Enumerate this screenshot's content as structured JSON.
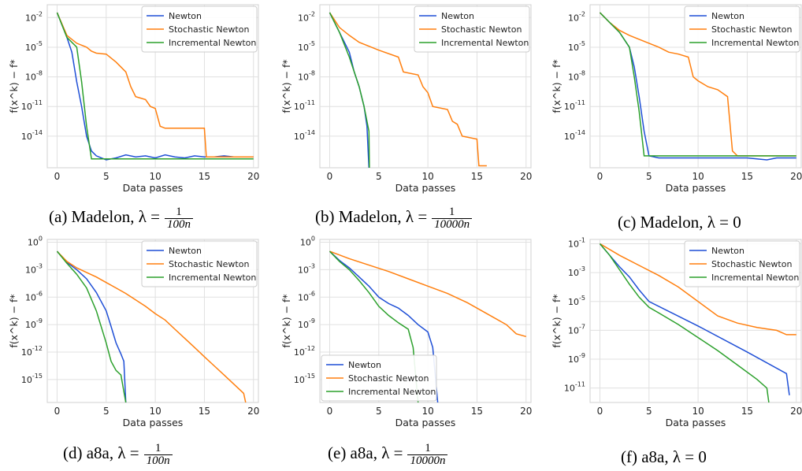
{
  "figure": {
    "series_names": [
      "Newton",
      "Stochastic Newton",
      "Incremental Newton"
    ],
    "colors": {
      "Newton": "#1f4fd6",
      "Stochastic Newton": "#ff7f0e",
      "Incremental Newton": "#2ca02c"
    },
    "xlabel": "Data passes",
    "ylabel_text": "f(x^k) − f*"
  },
  "captions": [
    {
      "prefix": "(a) Madelon, λ = ",
      "num": "1",
      "den": "100n",
      "zero": ""
    },
    {
      "prefix": "(b) Madelon, λ = ",
      "num": "1",
      "den": "10000n",
      "zero": ""
    },
    {
      "prefix": "(c) Madelon, λ = 0",
      "num": "",
      "den": "",
      "zero": ""
    },
    {
      "prefix": "(d) a8a, λ = ",
      "num": "1",
      "den": "100n",
      "zero": ""
    },
    {
      "prefix": "(e) a8a, λ = ",
      "num": "1",
      "den": "10000n",
      "zero": ""
    },
    {
      "prefix": "(f) a8a, λ = 0",
      "num": "",
      "den": "",
      "zero": ""
    }
  ],
  "chart_data": [
    {
      "type": "line",
      "title": "",
      "xlabel": "Data passes",
      "ylabel": "f(x^k) − f*",
      "yscale": "log",
      "xlim": [
        -1,
        20.5
      ],
      "ylim_exp": [
        -17.2,
        -0.7
      ],
      "xticks": [
        0,
        5,
        10,
        15,
        20
      ],
      "ytick_exps": [
        -2,
        -5,
        -8,
        -11,
        -14
      ],
      "legend": "top-right",
      "series": [
        {
          "name": "Newton",
          "x": [
            0,
            1,
            1.5,
            2,
            2.5,
            3,
            3.5,
            4,
            5,
            6,
            7,
            8,
            9,
            10,
            11,
            12,
            13,
            14,
            15,
            16,
            17,
            18,
            19,
            20
          ],
          "y_exp": [
            -1.5,
            -4,
            -5.5,
            -8.5,
            -11,
            -14,
            -15.5,
            -16,
            -16.4,
            -16.2,
            -15.9,
            -16.1,
            -16,
            -16.2,
            -15.9,
            -16.1,
            -16.2,
            -16,
            -16.1,
            -16.1,
            -16,
            -16.1,
            -16.1,
            -16.1
          ]
        },
        {
          "name": "Stochastic Newton",
          "x": [
            0,
            1,
            2,
            3,
            3.5,
            4,
            5,
            6,
            7,
            7.5,
            8,
            9,
            9.5,
            10,
            10.5,
            11,
            12,
            15,
            15.2,
            16,
            18,
            20
          ],
          "y_exp": [
            -1.5,
            -3.8,
            -4.6,
            -5,
            -5.4,
            -5.6,
            -5.7,
            -6.5,
            -7.5,
            -9,
            -10,
            -10.3,
            -11,
            -11.2,
            -13,
            -13.2,
            -13.2,
            -13.2,
            -16.1,
            -16.1,
            -16.1,
            -16.1
          ]
        },
        {
          "name": "Incremental Newton",
          "x": [
            0,
            1,
            2,
            2.5,
            3,
            3.5,
            4,
            5,
            10,
            15,
            20
          ],
          "y_exp": [
            -1.5,
            -4,
            -5,
            -8.5,
            -13,
            -16.3,
            -16.3,
            -16.3,
            -16.3,
            -16.3,
            -16.3
          ]
        }
      ]
    },
    {
      "type": "line",
      "title": "",
      "xlabel": "Data passes",
      "ylabel": "f(x^k) − f*",
      "yscale": "log",
      "xlim": [
        -1,
        20.5
      ],
      "ylim_exp": [
        -17.2,
        -0.7
      ],
      "xticks": [
        0,
        5,
        10,
        15,
        20
      ],
      "ytick_exps": [
        -2,
        -5,
        -8,
        -11,
        -14
      ],
      "legend": "top-right",
      "series": [
        {
          "name": "Newton",
          "x": [
            0,
            1,
            2,
            2.5,
            3,
            3.5,
            3.8,
            4
          ],
          "y_exp": [
            -1.5,
            -3.5,
            -5.5,
            -7.5,
            -9,
            -11,
            -13,
            -17.2
          ]
        },
        {
          "name": "Stochastic Newton",
          "x": [
            0,
            1,
            2,
            3,
            5,
            7,
            7.5,
            9,
            9.5,
            10,
            10.5,
            12,
            12.5,
            13,
            13.5,
            15,
            15.2,
            16
          ],
          "y_exp": [
            -1.5,
            -3,
            -3.8,
            -4.5,
            -5.3,
            -6,
            -7.5,
            -7.8,
            -9,
            -9.6,
            -11,
            -11.3,
            -12.5,
            -12.8,
            -14,
            -14.3,
            -17,
            -17
          ]
        },
        {
          "name": "Incremental Newton",
          "x": [
            0,
            1,
            2,
            3,
            3.5,
            4,
            4.05
          ],
          "y_exp": [
            -1.5,
            -3.5,
            -6,
            -9,
            -11,
            -13.5,
            -17.2
          ]
        }
      ]
    },
    {
      "type": "line",
      "title": "",
      "xlabel": "Data passes",
      "ylabel": "f(x^k) − f*",
      "yscale": "log",
      "xlim": [
        -1,
        20.5
      ],
      "ylim_exp": [
        -17.2,
        -0.7
      ],
      "xticks": [
        0,
        5,
        10,
        15,
        20
      ],
      "ytick_exps": [
        -2,
        -5,
        -8,
        -11,
        -14
      ],
      "legend": "top-right",
      "series": [
        {
          "name": "Newton",
          "x": [
            0,
            1,
            2,
            3,
            3.5,
            4,
            4.5,
            5,
            6,
            10,
            15,
            17,
            18,
            20
          ],
          "y_exp": [
            -1.5,
            -2.5,
            -3.5,
            -5,
            -7,
            -10,
            -13.5,
            -16,
            -16.2,
            -16.2,
            -16.2,
            -16.4,
            -16.2,
            -16.2
          ]
        },
        {
          "name": "Stochastic Newton",
          "x": [
            0,
            1,
            2,
            3,
            4,
            5,
            6,
            7,
            8,
            9,
            9.5,
            10,
            11,
            12,
            13,
            13.5,
            14,
            15,
            20
          ],
          "y_exp": [
            -1.5,
            -2.5,
            -3.3,
            -3.8,
            -4.2,
            -4.6,
            -5,
            -5.5,
            -5.7,
            -6,
            -8,
            -8.4,
            -9,
            -9.3,
            -10,
            -15.5,
            -16,
            -16,
            -16
          ]
        },
        {
          "name": "Incremental Newton",
          "x": [
            0,
            1,
            2,
            3,
            3.5,
            4,
            4.5,
            5,
            10,
            15,
            20
          ],
          "y_exp": [
            -1.5,
            -2.5,
            -3.5,
            -5,
            -8,
            -11.5,
            -16,
            -16,
            -16,
            -16,
            -16
          ]
        }
      ]
    },
    {
      "type": "line",
      "title": "",
      "xlabel": "Data passes",
      "ylabel": "f(x^k) − f*",
      "yscale": "log",
      "xlim": [
        -1,
        20.5
      ],
      "ylim_exp": [
        -17.5,
        0.3
      ],
      "xticks": [
        0,
        5,
        10,
        15,
        20
      ],
      "ytick_exps": [
        0,
        -3,
        -6,
        -9,
        -12,
        -15
      ],
      "legend": "top-right",
      "series": [
        {
          "name": "Newton",
          "x": [
            0,
            1,
            2,
            3,
            4,
            5,
            5.5,
            6,
            6.5,
            6.8,
            7
          ],
          "y_exp": [
            -1,
            -2.2,
            -3,
            -4,
            -5.5,
            -7.5,
            -9.2,
            -11,
            -12.2,
            -13,
            -17.5
          ]
        },
        {
          "name": "Stochastic Newton",
          "x": [
            0,
            1,
            2,
            3,
            4,
            5,
            6,
            7,
            8,
            9,
            10,
            11,
            12,
            13,
            14,
            15,
            16,
            17,
            18,
            19,
            19.2
          ],
          "y_exp": [
            -1,
            -2.1,
            -2.8,
            -3.3,
            -3.8,
            -4.4,
            -5,
            -5.6,
            -6.3,
            -7,
            -7.8,
            -8.5,
            -9.5,
            -10.5,
            -11.5,
            -12.5,
            -13.5,
            -14.5,
            -15.5,
            -16.5,
            -17.5
          ]
        },
        {
          "name": "Incremental Newton",
          "x": [
            0,
            1,
            2,
            3,
            4,
            5,
            5.5,
            6,
            6.5,
            7
          ],
          "y_exp": [
            -1,
            -2.3,
            -3.5,
            -5,
            -7.5,
            -11,
            -13,
            -14,
            -14.5,
            -17.5
          ]
        }
      ]
    },
    {
      "type": "line",
      "title": "",
      "xlabel": "Data passes",
      "ylabel": "f(x^k) − f*",
      "yscale": "log",
      "xlim": [
        -1,
        20.5
      ],
      "ylim_exp": [
        -17.5,
        0.3
      ],
      "xticks": [
        0,
        5,
        10,
        15,
        20
      ],
      "ytick_exps": [
        0,
        -3,
        -6,
        -9,
        -12,
        -15
      ],
      "legend": "bottom-left",
      "series": [
        {
          "name": "Newton",
          "x": [
            0,
            1,
            2,
            3,
            4,
            5,
            6,
            7,
            8,
            9,
            10,
            10.5,
            11
          ],
          "y_exp": [
            -1,
            -2,
            -2.8,
            -3.8,
            -4.8,
            -6,
            -6.7,
            -7.2,
            -8,
            -9,
            -9.8,
            -11.5,
            -17.5
          ]
        },
        {
          "name": "Stochastic Newton",
          "x": [
            0,
            2,
            4,
            6,
            8,
            10,
            12,
            14,
            16,
            18,
            19,
            20
          ],
          "y_exp": [
            -1,
            -1.8,
            -2.5,
            -3.2,
            -4,
            -4.8,
            -5.6,
            -6.6,
            -7.8,
            -9,
            -10,
            -10.3
          ]
        },
        {
          "name": "Incremental Newton",
          "x": [
            0,
            1,
            2,
            3,
            4,
            5,
            6,
            7,
            8,
            8.5,
            9
          ],
          "y_exp": [
            -1,
            -2.1,
            -3,
            -4.2,
            -5.5,
            -7,
            -8,
            -8.8,
            -9.5,
            -11.5,
            -17.5
          ]
        }
      ]
    },
    {
      "type": "line",
      "title": "",
      "xlabel": "Data passes",
      "ylabel": "f(x^k) − f*",
      "yscale": "log",
      "xlim": [
        -1,
        20.5
      ],
      "ylim_exp": [
        -12,
        -0.7
      ],
      "xticks": [
        0,
        5,
        10,
        15,
        20
      ],
      "ytick_exps": [
        -1,
        -3,
        -5,
        -7,
        -9,
        -11
      ],
      "legend": "top-right",
      "series": [
        {
          "name": "Newton",
          "x": [
            0,
            1,
            2,
            3,
            4,
            5,
            10,
            15,
            19,
            19.3
          ],
          "y_exp": [
            -1,
            -1.8,
            -2.6,
            -3.3,
            -4.2,
            -5,
            -6.7,
            -8.5,
            -10,
            -11.5
          ]
        },
        {
          "name": "Stochastic Newton",
          "x": [
            0,
            2,
            4,
            6,
            8,
            10,
            12,
            14,
            16,
            17,
            18,
            19,
            20
          ],
          "y_exp": [
            -1,
            -1.8,
            -2.5,
            -3.2,
            -4,
            -5,
            -6,
            -6.5,
            -6.8,
            -6.9,
            -7,
            -7.3,
            -7.3
          ]
        },
        {
          "name": "Incremental Newton",
          "x": [
            0,
            1,
            2,
            3,
            4,
            5,
            6,
            8,
            10,
            12,
            14,
            16,
            17,
            17.2
          ],
          "y_exp": [
            -1,
            -1.8,
            -2.8,
            -3.8,
            -4.7,
            -5.4,
            -5.8,
            -6.6,
            -7.5,
            -8.4,
            -9.4,
            -10.4,
            -11,
            -12
          ]
        }
      ]
    }
  ]
}
